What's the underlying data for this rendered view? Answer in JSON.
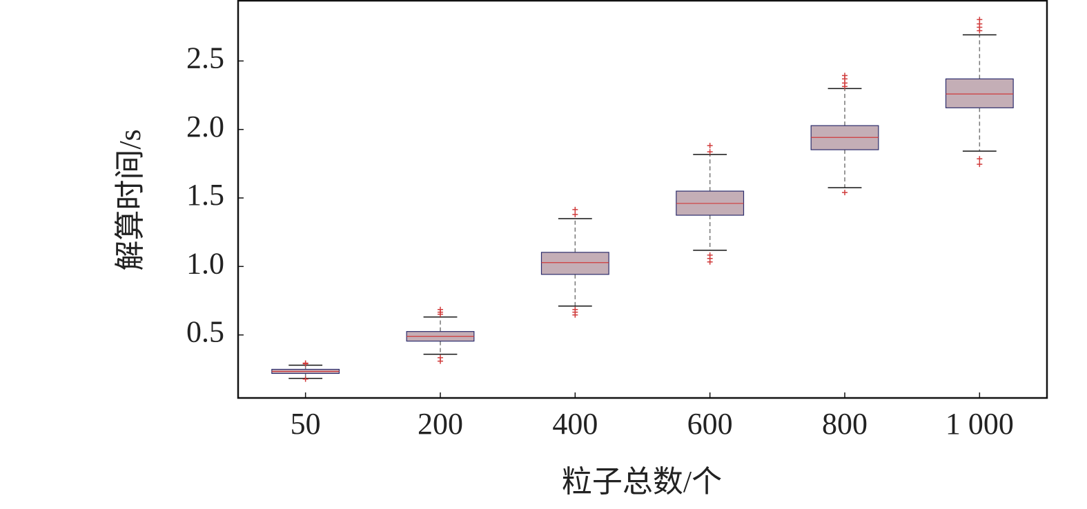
{
  "chart_data": {
    "type": "box",
    "x_label": "粒子总数/个",
    "y_label": "解算时间/s",
    "categories": [
      "50",
      "200",
      "400",
      "600",
      "800",
      "1 000"
    ],
    "whisker_low": [
      0.183,
      0.359,
      0.711,
      1.118,
      1.575,
      1.842
    ],
    "q1": [
      0.219,
      0.455,
      0.942,
      1.374,
      1.852,
      2.158
    ],
    "median": [
      0.234,
      0.49,
      1.028,
      1.46,
      1.942,
      2.259
    ],
    "q3": [
      0.249,
      0.525,
      1.103,
      1.55,
      2.028,
      2.369
    ],
    "whisker_high": [
      0.279,
      0.631,
      1.349,
      1.817,
      2.299,
      2.691
    ],
    "outliers": [
      [
        0.294,
        0.289,
        0.178
      ],
      [
        0.686,
        0.666,
        0.651,
        0.334,
        0.309
      ],
      [
        1.415,
        1.379,
        0.686,
        0.666,
        0.646
      ],
      [
        1.882,
        1.837,
        1.083,
        1.058,
        1.033
      ],
      [
        2.394,
        2.369,
        2.339,
        2.314,
        1.54
      ],
      [
        2.802,
        2.771,
        2.746,
        2.721,
        1.786,
        1.746
      ]
    ],
    "box_color": "#c4aeb6",
    "box_edge_color": "#2b2b6b",
    "median_color": "#d03a3a",
    "outlier_color": "#d03a3a",
    "ylim": [
      0.04,
      2.94
    ],
    "yticks": [
      0.5,
      {
        "value": 1,
        "label": "1.0"
      },
      1.5,
      {
        "value": 2,
        "label": "2.0"
      },
      2.5
    ]
  }
}
